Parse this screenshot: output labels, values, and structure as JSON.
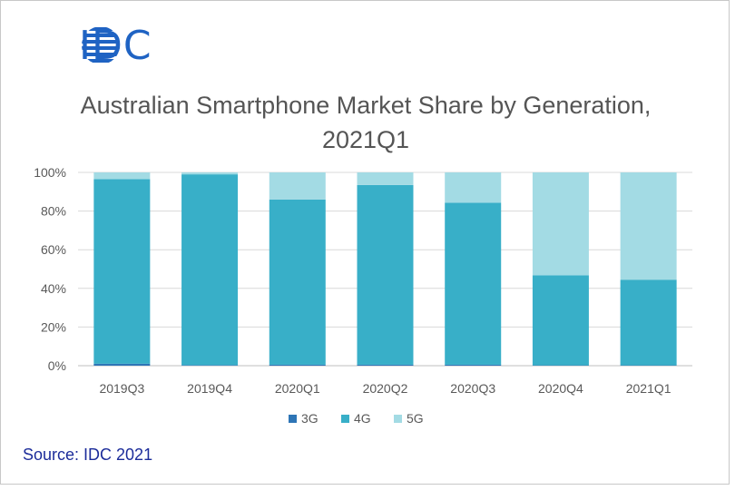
{
  "brand": {
    "logo_text": "IDC"
  },
  "title_lines": [
    "Australian Smartphone Market Share by Generation,",
    "2021Q1"
  ],
  "source": "Source: IDC 2021",
  "chart_data": {
    "type": "bar",
    "stacked": true,
    "title": "Australian Smartphone Market Share by Generation, 2021Q1",
    "categories": [
      "2019Q3",
      "2019Q4",
      "2020Q1",
      "2020Q2",
      "2020Q3",
      "2020Q4",
      "2021Q1"
    ],
    "series": [
      {
        "name": "3G",
        "color": "#2e75b6",
        "values": [
          1.0,
          0.3,
          0.5,
          0.5,
          0.5,
          0.2,
          0.2
        ]
      },
      {
        "name": "4G",
        "color": "#38afc8",
        "values": [
          95.5,
          98.7,
          85.5,
          93.0,
          83.8,
          46.6,
          44.3
        ]
      },
      {
        "name": "5G",
        "color": "#a3dbe4",
        "values": [
          3.5,
          1.0,
          14.0,
          6.5,
          15.7,
          53.2,
          55.5
        ]
      }
    ],
    "y_ticks": [
      "0%",
      "20%",
      "40%",
      "60%",
      "80%",
      "100%"
    ],
    "ylim": [
      0,
      100
    ],
    "grid": true,
    "legend_position": "bottom"
  }
}
